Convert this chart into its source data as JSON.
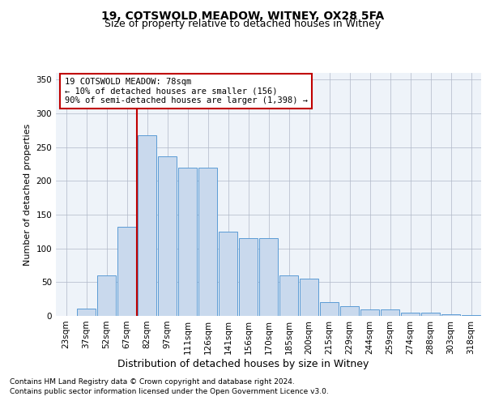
{
  "title1": "19, COTSWOLD MEADOW, WITNEY, OX28 5FA",
  "title2": "Size of property relative to detached houses in Witney",
  "xlabel": "Distribution of detached houses by size in Witney",
  "ylabel": "Number of detached properties",
  "categories": [
    "23sqm",
    "37sqm",
    "52sqm",
    "67sqm",
    "82sqm",
    "97sqm",
    "111sqm",
    "126sqm",
    "141sqm",
    "156sqm",
    "170sqm",
    "185sqm",
    "200sqm",
    "215sqm",
    "229sqm",
    "244sqm",
    "259sqm",
    "274sqm",
    "288sqm",
    "303sqm",
    "318sqm"
  ],
  "values": [
    0,
    11,
    60,
    132,
    268,
    237,
    220,
    220,
    125,
    115,
    115,
    60,
    55,
    20,
    15,
    10,
    10,
    5,
    5,
    2,
    1
  ],
  "bar_color": "#c9d9ed",
  "bar_edge_color": "#5b9bd5",
  "vline_color": "#c00000",
  "vline_idx": 4,
  "annotation_text": "19 COTSWOLD MEADOW: 78sqm\n← 10% of detached houses are smaller (156)\n90% of semi-detached houses are larger (1,398) →",
  "annotation_box_color": "#ffffff",
  "annotation_box_edge": "#c00000",
  "footer1": "Contains HM Land Registry data © Crown copyright and database right 2024.",
  "footer2": "Contains public sector information licensed under the Open Government Licence v3.0.",
  "plot_bg_color": "#eef3f9",
  "ylim": [
    0,
    360
  ],
  "yticks": [
    0,
    50,
    100,
    150,
    200,
    250,
    300,
    350
  ],
  "title1_fontsize": 10,
  "title2_fontsize": 9,
  "ylabel_fontsize": 8,
  "xlabel_fontsize": 9,
  "tick_fontsize": 7.5,
  "annotation_fontsize": 7.5,
  "footer_fontsize": 6.5
}
